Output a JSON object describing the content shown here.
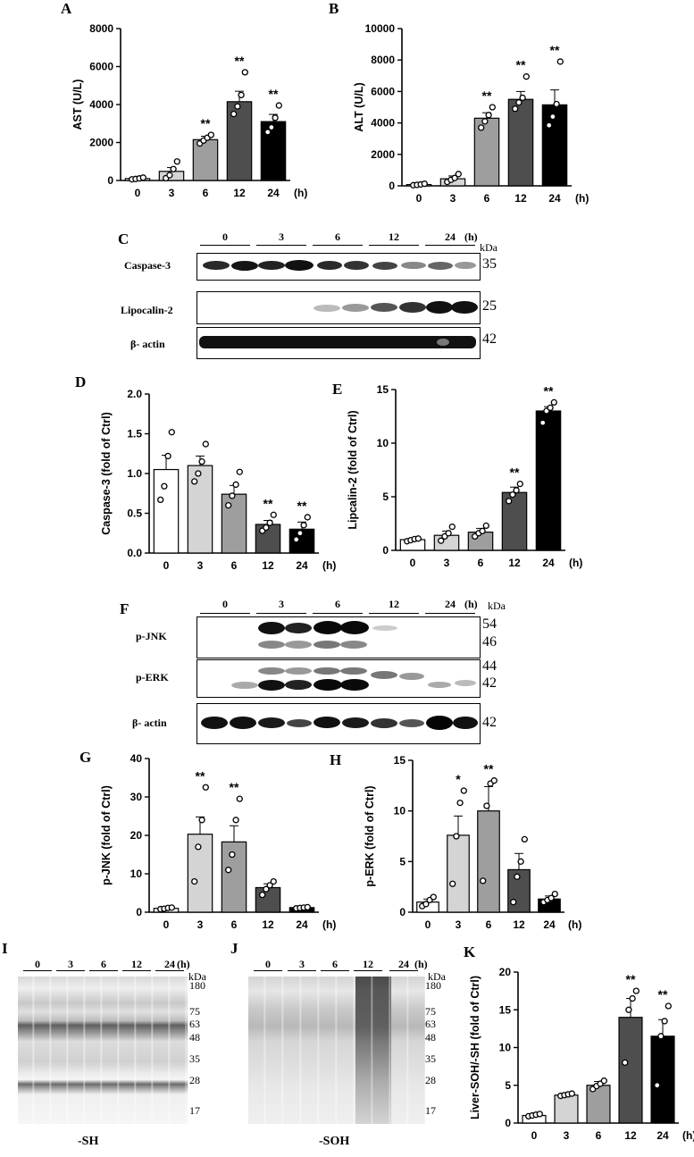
{
  "panels": {
    "A": "A",
    "B": "B",
    "C": "C",
    "D": "D",
    "E": "E",
    "F": "F",
    "G": "G",
    "H": "H",
    "I": "I",
    "J": "J",
    "K": "K"
  },
  "chart_data": [
    {
      "id": "A",
      "type": "bar",
      "ylabel": "AST (U/L)",
      "xunit": "(h)",
      "categories": [
        "0",
        "3",
        "6",
        "12",
        "24"
      ],
      "values": [
        100,
        480,
        2150,
        4150,
        3100
      ],
      "errors": [
        20,
        200,
        180,
        550,
        380
      ],
      "points": [
        [
          60,
          80,
          110,
          150
        ],
        [
          120,
          280,
          600,
          1000
        ],
        [
          1950,
          2100,
          2250,
          2400
        ],
        [
          3500,
          3900,
          4500,
          5700
        ],
        [
          2550,
          2800,
          3300,
          3950
        ]
      ],
      "sig": [
        "",
        "",
        "**",
        "**",
        "**"
      ],
      "ylim": [
        0,
        8000
      ],
      "yticks": [
        0,
        2000,
        4000,
        6000,
        8000
      ],
      "colors": [
        "#ffffff",
        "#d4d4d4",
        "#9e9e9e",
        "#4e4e4e",
        "#000000"
      ]
    },
    {
      "id": "B",
      "type": "bar",
      "ylabel": "ALT (U/L)",
      "xunit": "(h)",
      "categories": [
        "0",
        "3",
        "6",
        "12",
        "24"
      ],
      "values": [
        80,
        450,
        4300,
        5500,
        5150
      ],
      "errors": [
        20,
        180,
        350,
        500,
        950
      ],
      "points": [
        [
          40,
          60,
          90,
          130
        ],
        [
          250,
          380,
          500,
          750
        ],
        [
          3700,
          4100,
          4500,
          5000
        ],
        [
          4900,
          5300,
          5600,
          6950
        ],
        [
          3850,
          4400,
          5200,
          7900
        ]
      ],
      "sig": [
        "",
        "",
        "**",
        "**",
        "**"
      ],
      "ylim": [
        0,
        10000
      ],
      "yticks": [
        0,
        2000,
        4000,
        6000,
        8000,
        10000
      ],
      "colors": [
        "#ffffff",
        "#d4d4d4",
        "#9e9e9e",
        "#4e4e4e",
        "#000000"
      ]
    },
    {
      "id": "D",
      "type": "bar",
      "ylabel": "Caspase-3 (fold of Ctrl)",
      "xunit": "(h)",
      "categories": [
        "0",
        "3",
        "6",
        "12",
        "24"
      ],
      "values": [
        1.05,
        1.1,
        0.74,
        0.36,
        0.3
      ],
      "errors": [
        0.18,
        0.12,
        0.11,
        0.05,
        0.09
      ],
      "points": [
        [
          0.67,
          0.84,
          1.22,
          1.52
        ],
        [
          0.9,
          1.0,
          1.15,
          1.37
        ],
        [
          0.6,
          0.72,
          0.86,
          1.02
        ],
        [
          0.28,
          0.32,
          0.38,
          0.48
        ],
        [
          0.17,
          0.25,
          0.35,
          0.45
        ]
      ],
      "sig": [
        "",
        "",
        "",
        "**",
        "**"
      ],
      "ylim": [
        0,
        2.0
      ],
      "yticks": [
        0.0,
        0.5,
        1.0,
        1.5,
        2.0
      ],
      "tickfmt": 1,
      "colors": [
        "#ffffff",
        "#d4d4d4",
        "#9e9e9e",
        "#4e4e4e",
        "#000000"
      ]
    },
    {
      "id": "E",
      "type": "bar",
      "ylabel": "Lipcalin-2 (fold of Ctrl)",
      "xunit": "(h)",
      "categories": [
        "0",
        "3",
        "6",
        "12",
        "24"
      ],
      "values": [
        1.0,
        1.4,
        1.7,
        5.4,
        13.0
      ],
      "errors": [
        0.1,
        0.4,
        0.35,
        0.5,
        0.4
      ],
      "points": [
        [
          0.85,
          0.95,
          1.05,
          1.1
        ],
        [
          0.9,
          1.3,
          1.6,
          2.2
        ],
        [
          1.3,
          1.6,
          1.8,
          2.3
        ],
        [
          4.6,
          5.2,
          5.6,
          6.2
        ],
        [
          11.9,
          13.0,
          13.3,
          13.8
        ]
      ],
      "sig": [
        "",
        "",
        "",
        "**",
        "**"
      ],
      "ylim": [
        0,
        15
      ],
      "yticks": [
        0,
        5,
        10,
        15
      ],
      "colors": [
        "#ffffff",
        "#d4d4d4",
        "#9e9e9e",
        "#4e4e4e",
        "#000000"
      ]
    },
    {
      "id": "G",
      "type": "bar",
      "ylabel": "p-JNK (fold of Ctrl)",
      "xunit": "(h)",
      "categories": [
        "0",
        "3",
        "6",
        "12",
        "24"
      ],
      "values": [
        1.0,
        20.3,
        18.3,
        6.4,
        1.2
      ],
      "errors": [
        0.2,
        4.5,
        4.2,
        1.0,
        0.2
      ],
      "points": [
        [
          0.8,
          0.9,
          1.1,
          1.2
        ],
        [
          8.0,
          17.0,
          24.0,
          32.5
        ],
        [
          11.0,
          15.0,
          24.0,
          29.5
        ],
        [
          4.5,
          6.0,
          7.0,
          8.0
        ],
        [
          1.0,
          1.1,
          1.2,
          1.3
        ]
      ],
      "sig": [
        "",
        "**",
        "**",
        "",
        ""
      ],
      "ylim": [
        0,
        40
      ],
      "yticks": [
        0,
        10,
        20,
        30,
        40
      ],
      "colors": [
        "#ffffff",
        "#d4d4d4",
        "#9e9e9e",
        "#4e4e4e",
        "#000000"
      ]
    },
    {
      "id": "H",
      "type": "bar",
      "ylabel": "p-ERK (fold of Ctrl)",
      "xunit": "(h)",
      "categories": [
        "0",
        "3",
        "6",
        "12",
        "24"
      ],
      "values": [
        1.0,
        7.6,
        10.0,
        4.2,
        1.3
      ],
      "errors": [
        0.3,
        1.9,
        2.4,
        1.6,
        0.3
      ],
      "points": [
        [
          0.6,
          0.8,
          1.2,
          1.5
        ],
        [
          2.8,
          7.5,
          10.8,
          12.0
        ],
        [
          3.1,
          10.5,
          12.7,
          13.0
        ],
        [
          1.0,
          3.5,
          5.0,
          7.2
        ],
        [
          1.0,
          1.2,
          1.4,
          1.8
        ]
      ],
      "sig": [
        "",
        "*",
        "**",
        "",
        ""
      ],
      "ylim": [
        0,
        15
      ],
      "yticks": [
        0,
        5,
        10,
        15
      ],
      "colors": [
        "#ffffff",
        "#d4d4d4",
        "#9e9e9e",
        "#4e4e4e",
        "#000000"
      ]
    },
    {
      "id": "K",
      "type": "bar",
      "ylabel": "Liver-SOH/-SH (fold of Ctrl)",
      "xunit": "(h)",
      "categories": [
        "0",
        "3",
        "6",
        "12",
        "24"
      ],
      "values": [
        1.0,
        3.7,
        5.0,
        14.0,
        11.5
      ],
      "errors": [
        0.1,
        0.1,
        0.5,
        2.5,
        2.2
      ],
      "points": [
        [
          0.9,
          1.0,
          1.1,
          1.2
        ],
        [
          3.6,
          3.7,
          3.8,
          3.9
        ],
        [
          4.5,
          4.9,
          5.2,
          5.6
        ],
        [
          8.0,
          15.0,
          16.5,
          17.5
        ],
        [
          5.0,
          11.5,
          13.5,
          15.5
        ]
      ],
      "sig": [
        "",
        "",
        "",
        "**",
        "**"
      ],
      "ylim": [
        0,
        20
      ],
      "yticks": [
        0,
        5,
        10,
        15,
        20
      ],
      "colors": [
        "#ffffff",
        "#d4d4d4",
        "#9e9e9e",
        "#4e4e4e",
        "#000000"
      ]
    }
  ],
  "blots": {
    "C": {
      "lanes": [
        "0",
        "3",
        "6",
        "12",
        "24"
      ],
      "unit": "(h)",
      "kda_label": "kDa",
      "rows": [
        {
          "label": "Caspase-3",
          "kda": "35"
        },
        {
          "label": "Lipocalin-2",
          "kda": "25"
        },
        {
          "label": "β- actin",
          "kda": "42"
        }
      ]
    },
    "F": {
      "lanes": [
        "0",
        "3",
        "6",
        "12",
        "24"
      ],
      "unit": "(h)",
      "kda_label": "kDa",
      "rows": [
        {
          "label": "p-JNK",
          "kda": [
            "54",
            "46"
          ]
        },
        {
          "label": "p-ERK",
          "kda": [
            "44",
            "42"
          ]
        },
        {
          "label": "β- actin",
          "kda": "42"
        }
      ]
    },
    "I": {
      "lanes": [
        "0",
        "3",
        "6",
        "12",
        "24"
      ],
      "unit": "(h)",
      "kda_label": "kDa",
      "markers": [
        "180",
        "75",
        "63",
        "48",
        "35",
        "28",
        "17"
      ],
      "caption": "-SH"
    },
    "J": {
      "lanes": [
        "0",
        "3",
        "6",
        "12",
        "24"
      ],
      "unit": "(h)",
      "kda_label": "kDa",
      "markers": [
        "180",
        "75",
        "63",
        "48",
        "35",
        "28",
        "17"
      ],
      "caption": "-SOH"
    }
  }
}
